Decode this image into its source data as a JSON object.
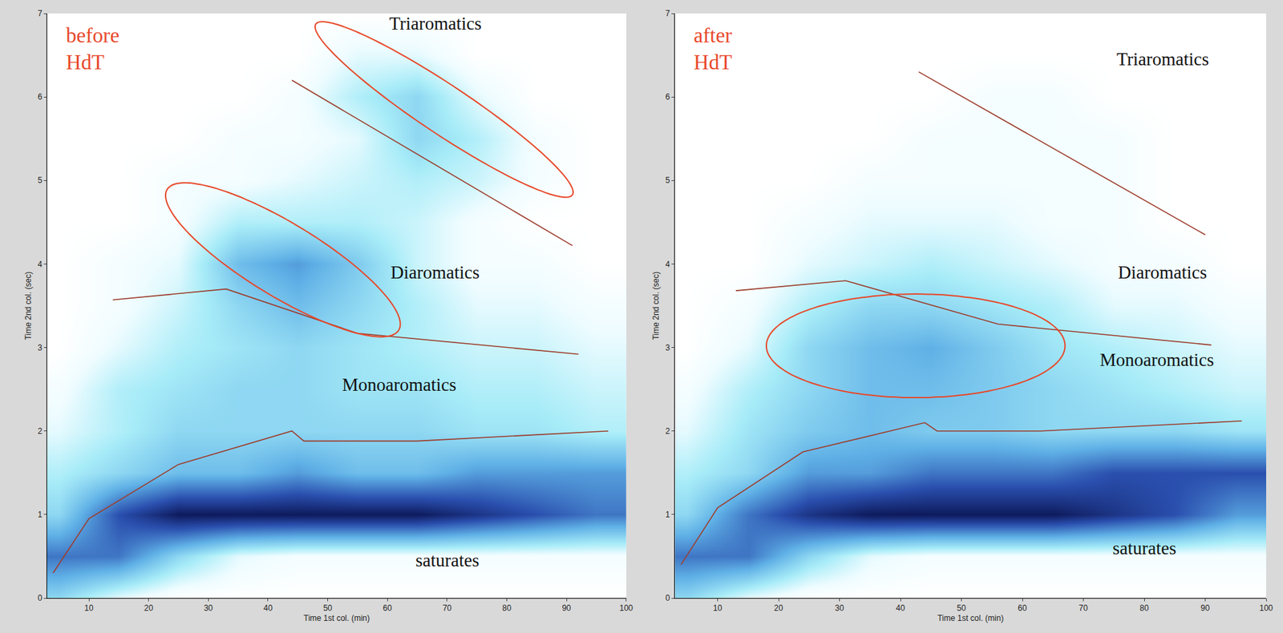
{
  "chart_data": [
    {
      "type": "heatmap",
      "panel_label": [
        "before",
        "HdT"
      ],
      "x_label": "Time 1st col. (min)",
      "y_label": "Time 2nd col. (sec)",
      "xlim": [
        3,
        100
      ],
      "ylim": [
        0,
        7
      ],
      "xticks": [
        10,
        20,
        30,
        40,
        50,
        60,
        70,
        80,
        90,
        100
      ],
      "yticks": [
        0,
        1,
        2,
        3,
        4,
        5,
        6,
        7
      ],
      "x": [
        5,
        15,
        25,
        35,
        45,
        55,
        65,
        75,
        85,
        95
      ],
      "y": [
        0,
        0.5,
        1,
        1.5,
        2,
        2.5,
        3,
        3.5,
        4,
        4.5,
        5,
        5.5,
        6,
        6.5,
        7
      ],
      "zlim": [
        0,
        10
      ],
      "z": [
        [
          3,
          1,
          0,
          0,
          0,
          0,
          0,
          0,
          0,
          0
        ],
        [
          6,
          6,
          3,
          1,
          0.5,
          0.5,
          0.5,
          0.5,
          0.5,
          0.5
        ],
        [
          3,
          7,
          9,
          9,
          9,
          9,
          9,
          8,
          7,
          6
        ],
        [
          2,
          3,
          4,
          4,
          5,
          4,
          4,
          5,
          5,
          5
        ],
        [
          1,
          2,
          3,
          3,
          3,
          3,
          3,
          2.5,
          2.5,
          2
        ],
        [
          0.5,
          2,
          2.5,
          3,
          3,
          2.5,
          2.5,
          2,
          2,
          1.5
        ],
        [
          0,
          1,
          2,
          2.5,
          3,
          2.5,
          2,
          1.5,
          1.5,
          1
        ],
        [
          0,
          0.5,
          1.5,
          3,
          4,
          3,
          2,
          1,
          1,
          0.5
        ],
        [
          0,
          0.5,
          1,
          4,
          5,
          3.5,
          1.5,
          0.5,
          0.5,
          0
        ],
        [
          0,
          0,
          0.5,
          2,
          2,
          2,
          1.5,
          0.5,
          0,
          0
        ],
        [
          0,
          0,
          0.5,
          0.5,
          1,
          1.5,
          2,
          1.5,
          0.5,
          0
        ],
        [
          0,
          0,
          0,
          0.5,
          0.5,
          1,
          3,
          2,
          0.5,
          0
        ],
        [
          0,
          0,
          0,
          0,
          0.5,
          2,
          3,
          1,
          0,
          0
        ],
        [
          0,
          0,
          0,
          0,
          0,
          1,
          1,
          0,
          0,
          0
        ],
        [
          0,
          0,
          0,
          0,
          0,
          0,
          0,
          0,
          0,
          0
        ]
      ],
      "annotations": [
        {
          "text": "Triaromatics",
          "x": 68,
          "y": 6.88
        },
        {
          "text": "Diaromatics",
          "x": 68,
          "y": 3.9
        },
        {
          "text": "Monoaromatics",
          "x": 62,
          "y": 2.55
        },
        {
          "text": "saturates",
          "x": 70,
          "y": 0.45
        }
      ],
      "lines": [
        {
          "color": "#9c3d2c",
          "x": [
            4,
            10,
            25,
            44,
            46,
            65,
            97
          ],
          "y": [
            0.3,
            0.95,
            1.6,
            2.0,
            1.88,
            1.88,
            2.0
          ]
        },
        {
          "color": "#9c3d2c",
          "x": [
            14,
            33,
            55,
            92
          ],
          "y": [
            3.57,
            3.7,
            3.17,
            2.92
          ]
        },
        {
          "color": "#9c3d2c",
          "x": [
            44,
            91
          ],
          "y": [
            6.2,
            4.22
          ]
        }
      ],
      "ellipses": [
        {
          "color": "#e8482a",
          "center": [
            69.5,
            5.85
          ],
          "a": [
            21.5,
            -0.95
          ],
          "b": [
            -2.2,
            0.45
          ]
        },
        {
          "color": "#e8482a",
          "center": [
            42.5,
            4.05
          ],
          "a": [
            19.5,
            -0.7
          ],
          "b": [
            -2.5,
            0.6
          ]
        }
      ]
    },
    {
      "type": "heatmap",
      "panel_label": [
        "after",
        "HdT"
      ],
      "x_label": "Time 1st col. (min)",
      "y_label": "Time 2nd col. (sec)",
      "xlim": [
        3,
        100
      ],
      "ylim": [
        0,
        7
      ],
      "xticks": [
        10,
        20,
        30,
        40,
        50,
        60,
        70,
        80,
        90,
        100
      ],
      "yticks": [
        0,
        1,
        2,
        3,
        4,
        5,
        6,
        7
      ],
      "x": [
        5,
        15,
        25,
        35,
        45,
        55,
        65,
        75,
        85,
        95
      ],
      "y": [
        0,
        0.5,
        1,
        1.5,
        2,
        2.5,
        3,
        3.5,
        4,
        4.5,
        5,
        5.5,
        6,
        6.5,
        7
      ],
      "zlim": [
        0,
        10
      ],
      "z": [
        [
          3,
          1,
          0,
          0,
          0,
          0,
          0,
          0,
          0,
          0
        ],
        [
          6,
          6,
          3,
          1,
          0.5,
          0.5,
          0.5,
          0.5,
          0.5,
          0.5
        ],
        [
          3,
          6,
          8,
          9,
          9,
          9,
          9,
          8,
          7,
          5
        ],
        [
          2,
          3,
          5,
          5,
          6,
          6,
          6,
          7,
          7,
          7
        ],
        [
          1,
          2.5,
          3.5,
          4,
          3.5,
          3.5,
          3,
          3,
          3,
          2.5
        ],
        [
          0.5,
          2,
          3,
          4,
          4,
          3.5,
          3,
          2.5,
          2,
          1.5
        ],
        [
          0,
          1,
          3,
          4,
          4.5,
          3.5,
          2.5,
          2,
          1.5,
          1
        ],
        [
          0,
          0.5,
          2,
          3,
          3,
          2.5,
          2,
          1,
          1,
          0.5
        ],
        [
          0,
          0,
          1,
          1.5,
          2,
          1.5,
          1,
          0.5,
          0.5,
          0
        ],
        [
          0,
          0,
          0.5,
          1,
          1,
          1,
          0.5,
          0.5,
          0,
          0
        ],
        [
          0,
          0,
          0,
          0.5,
          0.5,
          0.5,
          0.5,
          0.5,
          0,
          0
        ],
        [
          0,
          0,
          0,
          0,
          0.5,
          0.5,
          0.5,
          0.5,
          0,
          0
        ],
        [
          0,
          0,
          0,
          0,
          0,
          0.5,
          0.5,
          0,
          0,
          0
        ],
        [
          0,
          0,
          0,
          0,
          0,
          0,
          0,
          0,
          0,
          0
        ],
        [
          0,
          0,
          0,
          0,
          0,
          0,
          0,
          0,
          0,
          0
        ]
      ],
      "annotations": [
        {
          "text": "Triaromatics",
          "x": 83,
          "y": 6.45
        },
        {
          "text": "Diaromatics",
          "x": 83,
          "y": 3.9
        },
        {
          "text": "Monoaromatics",
          "x": 82,
          "y": 2.85
        },
        {
          "text": "saturates",
          "x": 80,
          "y": 0.6
        }
      ],
      "lines": [
        {
          "color": "#9c3d2c",
          "x": [
            4,
            10,
            24,
            44,
            46,
            63,
            96
          ],
          "y": [
            0.4,
            1.08,
            1.75,
            2.1,
            2.0,
            2.0,
            2.12
          ]
        },
        {
          "color": "#9c3d2c",
          "x": [
            13,
            31,
            56,
            91
          ],
          "y": [
            3.68,
            3.8,
            3.28,
            3.03
          ]
        },
        {
          "color": "#9c3d2c",
          "x": [
            43,
            90
          ],
          "y": [
            6.3,
            4.35
          ]
        }
      ],
      "ellipses": [
        {
          "color": "#e8482a",
          "center": [
            42.5,
            3.02
          ],
          "a": [
            24.5,
            0
          ],
          "b": [
            0,
            0.62
          ]
        }
      ]
    }
  ]
}
